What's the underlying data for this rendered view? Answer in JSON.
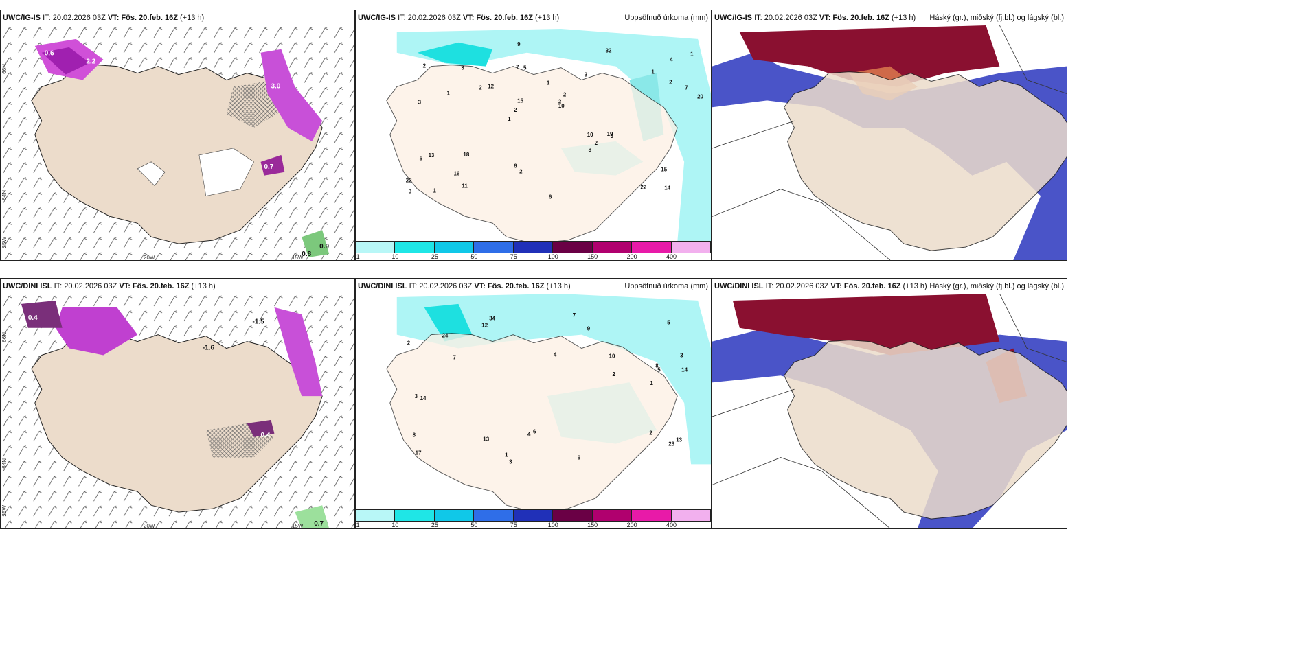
{
  "rows": [
    {
      "run_label": "UWC/IG-IS",
      "it": "IT: 20.02.2026 03Z",
      "vt": "VT: Fös. 20.feb. 16Z",
      "lead": "(+13 h)"
    },
    {
      "run_label": "UWC/DINI ISL",
      "it": "IT: 20.02.2026 03Z",
      "vt": "VT: Fös. 20.feb. 16Z",
      "lead": "(+13 h)"
    }
  ],
  "precip_title": "Uppsöfnuð úrkoma (mm)",
  "cloud_title": "Háský (gr.), miðský (fj.bl.) og lágský (bl.)",
  "axis_labels": {
    "lat66": "66N",
    "lat64": "64N",
    "lon25": "25W",
    "lon20": "20W",
    "lon15": "15W"
  },
  "colorbar": {
    "ticks": [
      "1",
      "10",
      "25",
      "50",
      "75",
      "100",
      "150",
      "200",
      "400"
    ],
    "colors": [
      "#b8f7f7",
      "#1fe6e6",
      "#10c8e8",
      "#2f6ee8",
      "#2030b8",
      "#6a0045",
      "#b0006e",
      "#e81aa8",
      "#f2b0ee"
    ]
  },
  "colors": {
    "land": "#ecdccb",
    "precip_light": "#aef5f5",
    "precip_mid": "#1ee0e0",
    "snow": "#c040d0",
    "cloud_low": "#4a54c8",
    "cloud_high": "#8a1030"
  },
  "precip_labels_top": [
    "14",
    "3",
    "4",
    "1",
    "3",
    "1",
    "7",
    "1",
    "13",
    "12",
    "22",
    "16",
    "5",
    "2",
    "5",
    "2",
    "9",
    "20",
    "10",
    "2",
    "2",
    "6",
    "15",
    "3",
    "32",
    "18",
    "22",
    "15",
    "19",
    "6",
    "2",
    "1",
    "8",
    "11",
    "7",
    "2",
    "3",
    "2",
    "10",
    "5",
    "1",
    "1",
    "2"
  ],
  "precip_labels_bottom": [
    "2",
    "3",
    "13",
    "4",
    "17",
    "34",
    "8",
    "13",
    "5",
    "7",
    "14",
    "2",
    "1",
    "3",
    "8",
    "24",
    "23",
    "12",
    "6",
    "5",
    "3",
    "14",
    "9",
    "2",
    "1",
    "4",
    "7",
    "9",
    "10"
  ]
}
